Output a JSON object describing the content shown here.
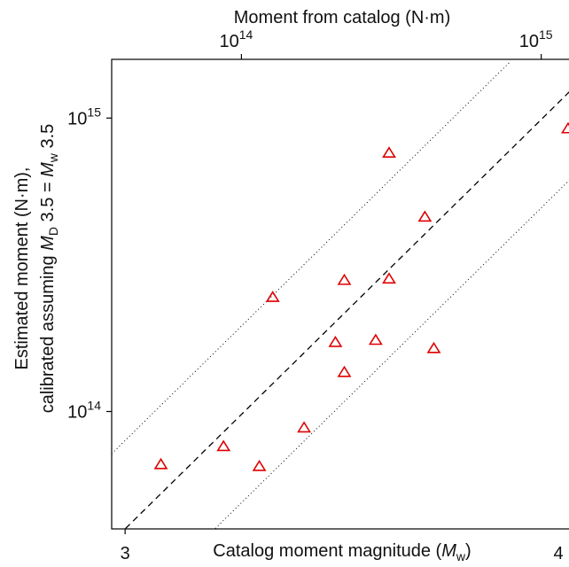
{
  "chart_data": {
    "type": "scatter",
    "xlabel_bottom": {
      "prefix": "Catalog moment magnitude (",
      "var": "M",
      "sub": "w",
      "suffix": ")"
    },
    "xlabel_top": "Moment from catalog (N·m)",
    "ylabel_line1": "Estimated moment (N·m),",
    "ylabel_line2": {
      "prefix": "calibrated assuming ",
      "var1": "M",
      "sub1": "D",
      "mid": " 3.5 = ",
      "var2": "M",
      "sub2": "w",
      "suffix": " 3.5"
    },
    "x_ticks_bottom": [
      {
        "value": 3,
        "label": "3"
      },
      {
        "value": 4,
        "label": "4"
      }
    ],
    "x_ticks_top": [
      {
        "mw": 3.26,
        "base": "10",
        "exp": "14"
      },
      {
        "mw": 3.93,
        "base": "10",
        "exp": "15"
      }
    ],
    "y_ticks": [
      {
        "value": 100000000000000,
        "base": "10",
        "exp": "14"
      },
      {
        "value": 1000000000000000,
        "base": "10",
        "exp": "15"
      }
    ],
    "xlim": [
      2.97,
      4.0
    ],
    "ylim_log10": [
      13.6,
      15.2
    ],
    "y_scale": "log",
    "grid": false,
    "series": [
      {
        "marker": "triangle",
        "color": "#dd0000",
        "points": [
          {
            "x": 3.08,
            "y": 66000000000000
          },
          {
            "x": 3.22,
            "y": 76000000000000
          },
          {
            "x": 3.3,
            "y": 65000000000000
          },
          {
            "x": 3.33,
            "y": 245000000000000
          },
          {
            "x": 3.4,
            "y": 88000000000000
          },
          {
            "x": 3.47,
            "y": 172000000000000
          },
          {
            "x": 3.49,
            "y": 136000000000000
          },
          {
            "x": 3.49,
            "y": 280000000000000
          },
          {
            "x": 3.56,
            "y": 175000000000000
          },
          {
            "x": 3.59,
            "y": 283000000000000
          },
          {
            "x": 3.59,
            "y": 760000000000000
          },
          {
            "x": 3.67,
            "y": 460000000000000
          },
          {
            "x": 3.69,
            "y": 164000000000000
          },
          {
            "x": 3.99,
            "y": 920000000000000
          }
        ]
      }
    ],
    "reference_lines": [
      {
        "name": "1:1",
        "style": "dashed",
        "log10_offset": 0
      },
      {
        "name": "upper",
        "style": "dotted",
        "log10_offset": 0.301
      },
      {
        "name": "lower",
        "style": "dotted",
        "log10_offset": -0.301
      }
    ]
  }
}
